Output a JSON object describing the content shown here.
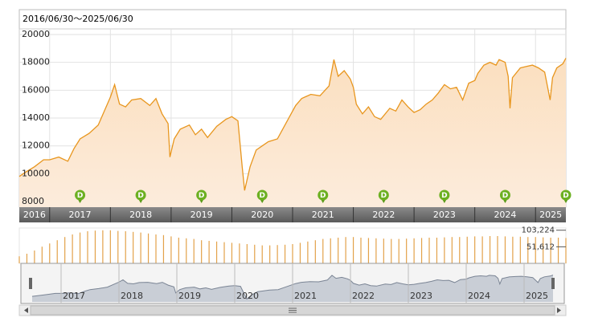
{
  "header": {
    "title": "2016/06/30～2025/06/30"
  },
  "chart_data": [
    {
      "type": "line",
      "color": "#e8961e",
      "fill": "#fbe4ca",
      "xlim": [
        2016.5,
        2025.5
      ],
      "ylim": [
        7600,
        20400
      ],
      "yticks": [
        8000,
        10000,
        12000,
        14000,
        16000,
        18000,
        20000
      ],
      "xticks": [
        2016,
        2017,
        2018,
        2019,
        2020,
        2021,
        2022,
        2023,
        2024,
        2025
      ],
      "grid": true,
      "dividends": {
        "label": "D",
        "x": [
          2017.5,
          2018.5,
          2019.5,
          2020.5,
          2021.5,
          2022.5,
          2023.5,
          2024.5,
          2025.5
        ]
      },
      "navigator_xticks": [
        2017,
        2018,
        2019,
        2020,
        2021,
        2022,
        2023,
        2024,
        2025
      ],
      "x": [
        2016.5,
        2016.6,
        2016.75,
        2016.9,
        2017.0,
        2017.15,
        2017.3,
        2017.4,
        2017.5,
        2017.65,
        2017.8,
        2017.9,
        2018.0,
        2018.07,
        2018.15,
        2018.25,
        2018.35,
        2018.5,
        2018.65,
        2018.75,
        2018.85,
        2018.95,
        2018.98,
        2019.05,
        2019.15,
        2019.3,
        2019.4,
        2019.5,
        2019.6,
        2019.75,
        2019.9,
        2020.0,
        2020.1,
        2020.17,
        2020.21,
        2020.3,
        2020.4,
        2020.5,
        2020.6,
        2020.75,
        2020.85,
        2020.95,
        2021.05,
        2021.15,
        2021.3,
        2021.45,
        2021.6,
        2021.68,
        2021.75,
        2021.85,
        2021.95,
        2022.0,
        2022.05,
        2022.15,
        2022.25,
        2022.35,
        2022.45,
        2022.6,
        2022.7,
        2022.8,
        2022.9,
        2023.0,
        2023.1,
        2023.2,
        2023.3,
        2023.4,
        2023.5,
        2023.6,
        2023.7,
        2023.8,
        2023.9,
        2024.0,
        2024.05,
        2024.15,
        2024.25,
        2024.35,
        2024.4,
        2024.5,
        2024.55,
        2024.58,
        2024.62,
        2024.75,
        2024.85,
        2024.95,
        2025.05,
        2025.15,
        2025.24,
        2025.28,
        2025.35,
        2025.45,
        2025.5
      ],
      "values": [
        9800,
        10100,
        10500,
        11000,
        11000,
        11200,
        10900,
        11800,
        12500,
        12900,
        13500,
        14500,
        15500,
        16400,
        15000,
        14800,
        15300,
        15400,
        14900,
        15400,
        14300,
        13600,
        11200,
        12500,
        13200,
        13500,
        12800,
        13200,
        12600,
        13400,
        13900,
        14100,
        13800,
        10500,
        8800,
        10500,
        11700,
        12000,
        12300,
        12500,
        13300,
        14100,
        14900,
        15400,
        15700,
        15600,
        16300,
        18200,
        17000,
        17400,
        16800,
        16200,
        15000,
        14300,
        14800,
        14100,
        13900,
        14700,
        14500,
        15300,
        14800,
        14400,
        14600,
        15000,
        15300,
        15800,
        16400,
        16100,
        16200,
        15300,
        16500,
        16700,
        17200,
        17800,
        18000,
        17800,
        18200,
        18000,
        17000,
        14700,
        16900,
        17600,
        17700,
        17800,
        17600,
        17300,
        15300,
        16900,
        17600,
        17900,
        18300
      ]
    },
    {
      "type": "bar",
      "color": "#e3a24a",
      "xlim": [
        2016.5,
        2025.5
      ],
      "ylim": [
        0,
        110000
      ],
      "yticks": [
        {
          "value": 51612,
          "label": "51,612"
        },
        {
          "value": 103224,
          "label": "103,224"
        }
      ],
      "x": [
        2016.5,
        2016.625,
        2016.75,
        2016.875,
        2017.0,
        2017.125,
        2017.25,
        2017.375,
        2017.5,
        2017.625,
        2017.75,
        2017.875,
        2018.0,
        2018.125,
        2018.25,
        2018.375,
        2018.5,
        2018.625,
        2018.75,
        2018.875,
        2019.0,
        2019.125,
        2019.25,
        2019.375,
        2019.5,
        2019.625,
        2019.75,
        2019.875,
        2020.0,
        2020.125,
        2020.25,
        2020.375,
        2020.5,
        2020.625,
        2020.75,
        2020.875,
        2021.0,
        2021.125,
        2021.25,
        2021.375,
        2021.5,
        2021.625,
        2021.75,
        2021.875,
        2022.0,
        2022.125,
        2022.25,
        2022.375,
        2022.5,
        2022.625,
        2022.75,
        2022.875,
        2023.0,
        2023.125,
        2023.25,
        2023.375,
        2023.5,
        2023.625,
        2023.75,
        2023.875,
        2024.0,
        2024.125,
        2024.25,
        2024.375,
        2024.5,
        2024.625,
        2024.75,
        2024.875,
        2025.0,
        2025.125,
        2025.25,
        2025.375,
        2025.5
      ],
      "values": [
        22000,
        30000,
        40000,
        52000,
        62000,
        72000,
        82000,
        90000,
        96000,
        100000,
        102000,
        103000,
        103000,
        101000,
        100000,
        98000,
        96000,
        93000,
        90000,
        88000,
        84000,
        80000,
        78000,
        76000,
        72000,
        70000,
        68000,
        66000,
        64000,
        62000,
        60000,
        58000,
        56000,
        56000,
        57000,
        58000,
        60000,
        64000,
        68000,
        72000,
        76000,
        78000,
        80000,
        82000,
        82000,
        80000,
        79000,
        78000,
        77000,
        76000,
        76000,
        77000,
        78000,
        79000,
        80000,
        80000,
        81000,
        82000,
        82000,
        83000,
        84000,
        84000,
        85000,
        85000,
        84000,
        83000,
        83000,
        82000,
        82000,
        81000,
        80000,
        80000,
        79000
      ]
    }
  ]
}
